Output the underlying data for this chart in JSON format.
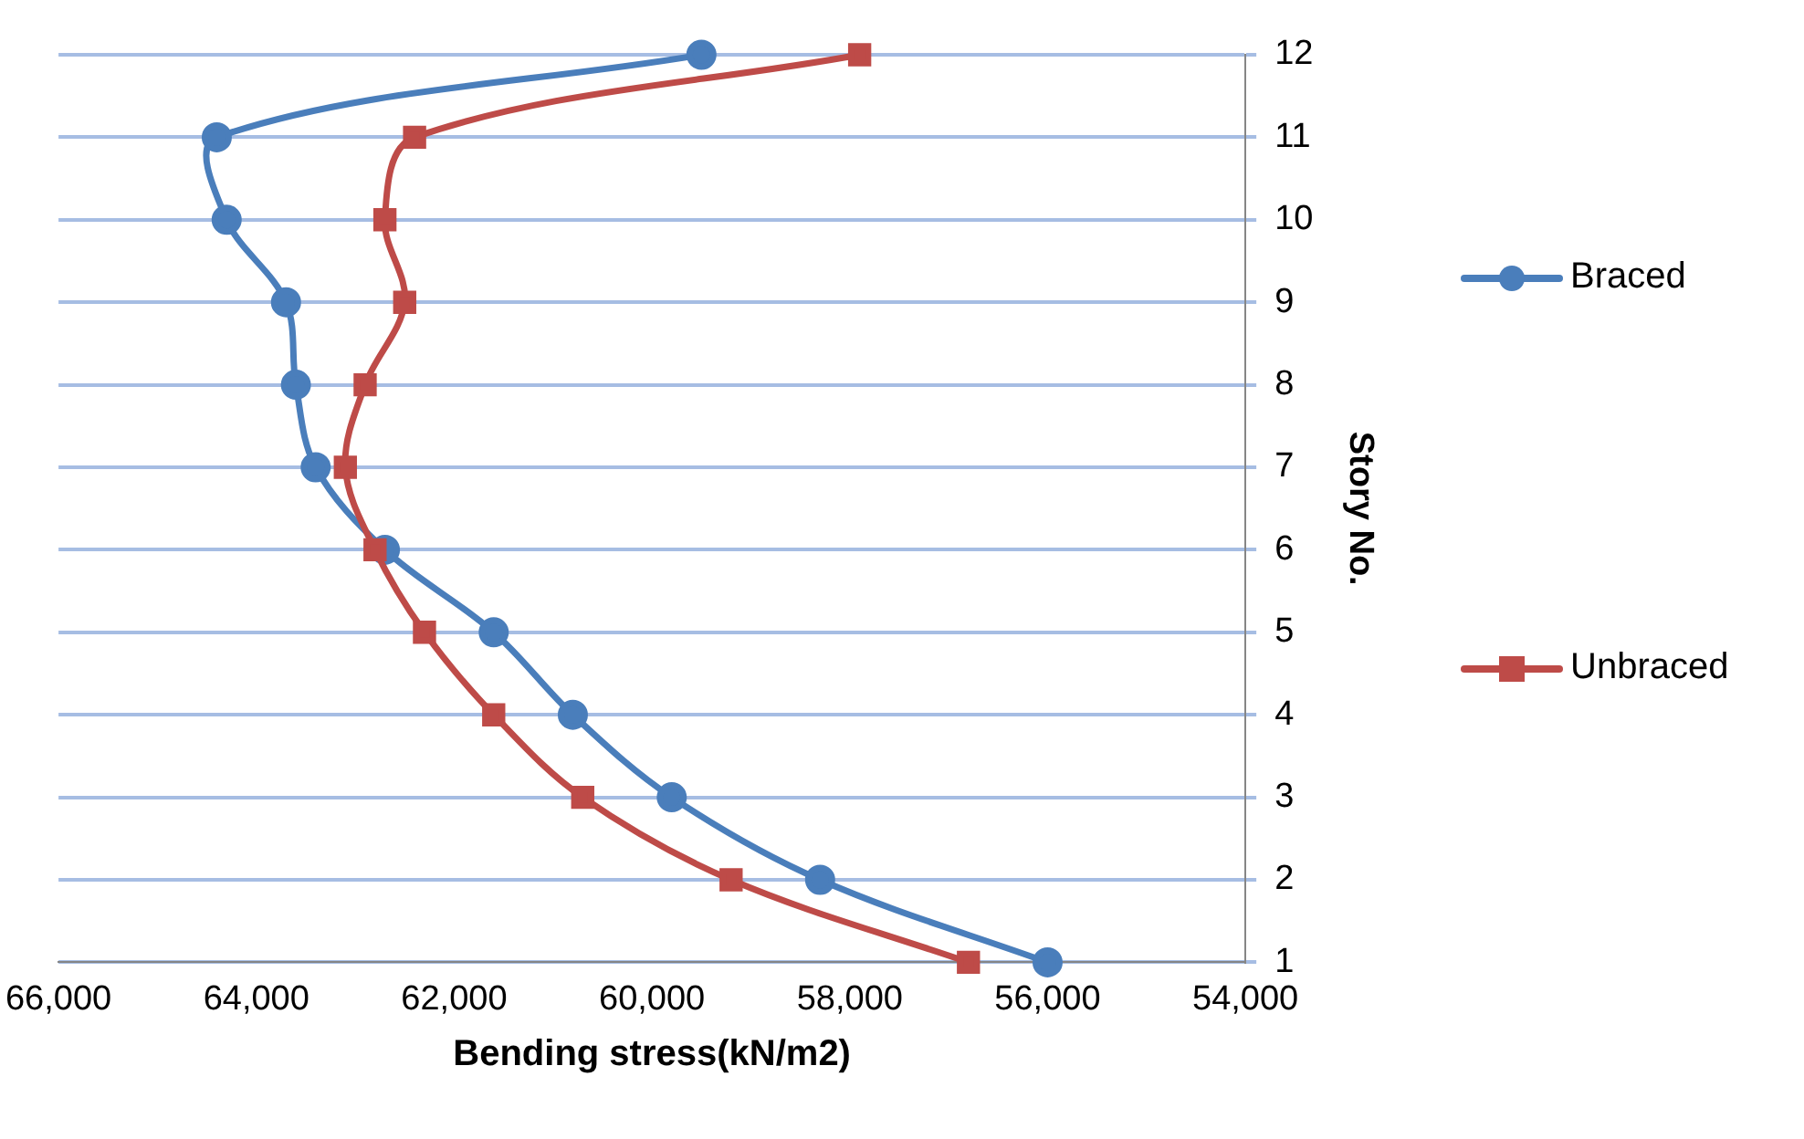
{
  "chart_data": {
    "type": "line",
    "xlabel": "Bending stress(kN/m2)",
    "ylabel": "Story No.",
    "xlim": [
      66000,
      54000
    ],
    "xticks": [
      {
        "value": 66000,
        "label": "66,000"
      },
      {
        "value": 64000,
        "label": "64,000"
      },
      {
        "value": 62000,
        "label": "62,000"
      },
      {
        "value": 60000,
        "label": "60,000"
      },
      {
        "value": 58000,
        "label": "58,000"
      },
      {
        "value": 56000,
        "label": "56,000"
      },
      {
        "value": 54000,
        "label": "54,000"
      }
    ],
    "ylim": [
      1,
      12
    ],
    "yticks": [
      1,
      2,
      3,
      4,
      5,
      6,
      7,
      8,
      9,
      10,
      11,
      12
    ],
    "grid": "y",
    "legend": "right",
    "series": [
      {
        "name": "Braced",
        "color": "#4a7ebb",
        "marker": "circle",
        "x": [
          56000,
          58300,
          59800,
          60800,
          61600,
          62700,
          63400,
          63600,
          63700,
          64300,
          64400,
          59500
        ],
        "values": [
          1,
          2,
          3,
          4,
          5,
          6,
          7,
          8,
          9,
          10,
          11,
          12
        ]
      },
      {
        "name": "Unbraced",
        "color": "#be4b48",
        "marker": "square",
        "x": [
          56800,
          59200,
          60700,
          61600,
          62300,
          62800,
          63100,
          62900,
          62500,
          62700,
          62400,
          57900
        ],
        "values": [
          1,
          2,
          3,
          4,
          5,
          6,
          7,
          8,
          9,
          10,
          11,
          12
        ]
      }
    ]
  }
}
